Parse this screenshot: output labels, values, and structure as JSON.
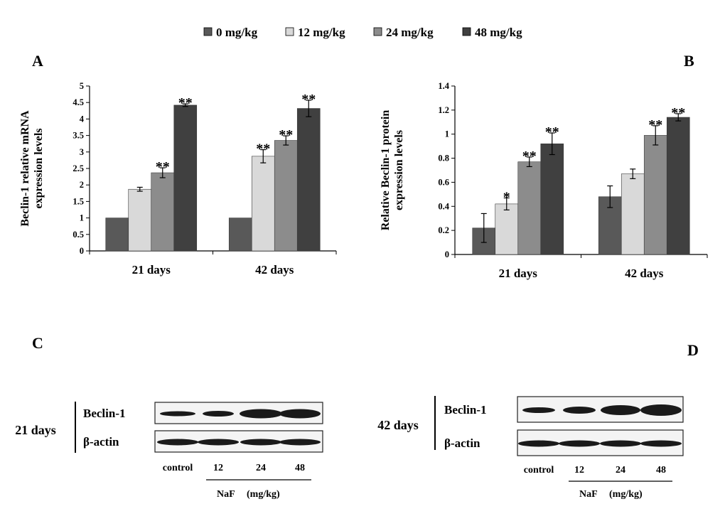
{
  "legend": [
    {
      "label": "0 mg/kg",
      "color": "#595959"
    },
    {
      "label": "12 mg/kg",
      "color": "#d9d9d9"
    },
    {
      "label": "24 mg/kg",
      "color": "#8c8c8c"
    },
    {
      "label": "48 mg/kg",
      "color": "#404040"
    }
  ],
  "panels": {
    "a": "A",
    "b": "B",
    "c": "C",
    "d": "D"
  },
  "chart_data": [
    {
      "panel": "A",
      "type": "bar",
      "categories": [
        "21 days",
        "42 days"
      ],
      "ylabel": "Beclin-1 relative mRNA expression levels",
      "ylabel_lines": [
        "Beclin-1 relative mRNA",
        "expression levels"
      ],
      "ylim": [
        0,
        5
      ],
      "yticks": [
        "0",
        "0.5",
        "1",
        "1.5",
        "2",
        "2.5",
        "3",
        "3.5",
        "4",
        "4.5",
        "5"
      ],
      "series": [
        {
          "name": "0 mg/kg",
          "values": [
            1.0,
            1.0
          ],
          "errors": [
            0,
            0
          ],
          "marks": [
            "",
            ""
          ]
        },
        {
          "name": "12 mg/kg",
          "values": [
            1.87,
            2.87
          ],
          "errors": [
            0.06,
            0.2
          ],
          "marks": [
            "",
            "**"
          ]
        },
        {
          "name": "24 mg/kg",
          "values": [
            2.37,
            3.35
          ],
          "errors": [
            0.15,
            0.14
          ],
          "marks": [
            "**",
            "**"
          ]
        },
        {
          "name": "48 mg/kg",
          "values": [
            4.42,
            4.32
          ],
          "errors": [
            0.04,
            0.25
          ],
          "marks": [
            "**",
            "**"
          ]
        }
      ]
    },
    {
      "panel": "B",
      "type": "bar",
      "categories": [
        "21 days",
        "42 days"
      ],
      "ylabel": "Relative Beclin-1 protein expression levels",
      "ylabel_lines": [
        "Relative Beclin-1 protein",
        "expression levels"
      ],
      "ylim": [
        0,
        1.4
      ],
      "yticks": [
        "0",
        "0.2",
        "0.4",
        "0.6",
        "0.8",
        "1",
        "1.2",
        "1.4"
      ],
      "series": [
        {
          "name": "0 mg/kg",
          "values": [
            0.22,
            0.48
          ],
          "errors": [
            0.12,
            0.09
          ],
          "marks": [
            "",
            ""
          ]
        },
        {
          "name": "12 mg/kg",
          "values": [
            0.42,
            0.67
          ],
          "errors": [
            0.05,
            0.04
          ],
          "marks": [
            "*",
            ""
          ]
        },
        {
          "name": "24 mg/kg",
          "values": [
            0.77,
            0.99
          ],
          "errors": [
            0.04,
            0.08
          ],
          "marks": [
            "**",
            "**"
          ]
        },
        {
          "name": "48 mg/kg",
          "values": [
            0.92,
            1.14
          ],
          "errors": [
            0.09,
            0.03
          ],
          "marks": [
            "**",
            "**"
          ]
        }
      ]
    }
  ],
  "blots": [
    {
      "group_label": "21 days",
      "rows": [
        "Beclin-1",
        "β-actin"
      ],
      "lanes": [
        "control",
        "12",
        "24",
        "48"
      ],
      "footer_treatment": "NaF",
      "footer_unit": "(mg/kg)"
    },
    {
      "group_label": "42 days",
      "rows": [
        "Beclin-1",
        "β-actin"
      ],
      "lanes": [
        "control",
        "12",
        "24",
        "48"
      ],
      "footer_treatment": "NaF",
      "footer_unit": "(mg/kg)"
    }
  ]
}
